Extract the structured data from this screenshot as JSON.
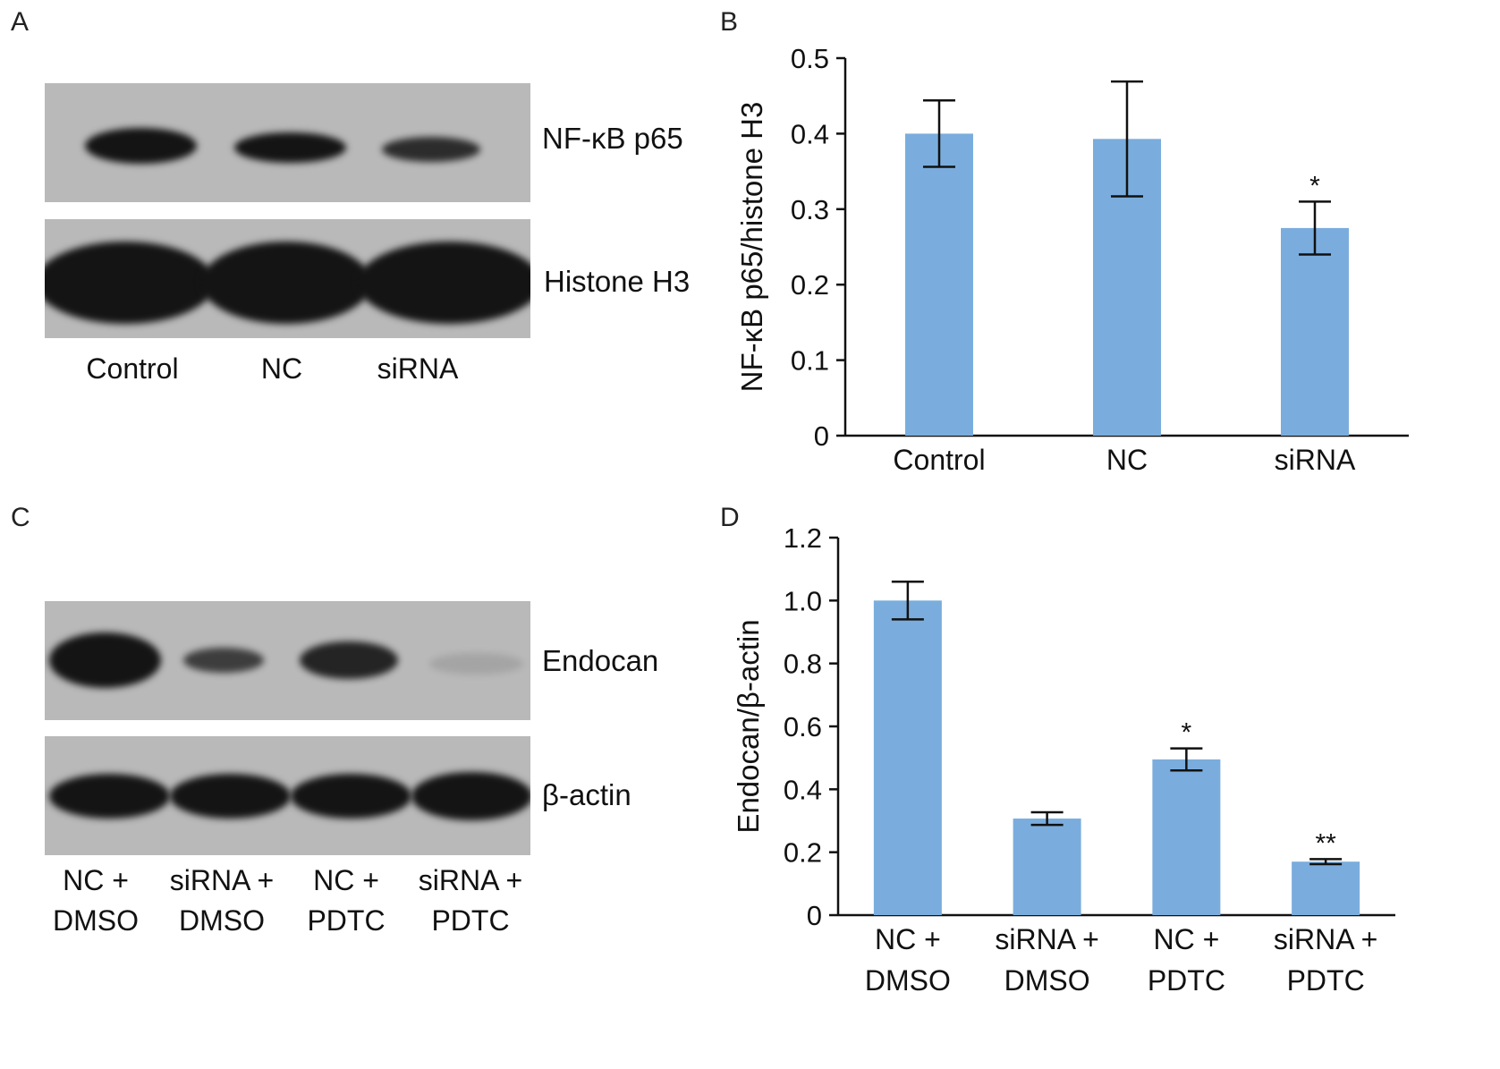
{
  "panels": {
    "A": {
      "letter": "A",
      "blots": [
        {
          "label": "NF-κB p65",
          "intensities": [
            0.85,
            0.8,
            0.6
          ]
        },
        {
          "label": "Histone H3",
          "intensities": [
            1,
            1,
            1
          ]
        }
      ],
      "lanes": [
        "Control",
        "NC",
        "siRNA"
      ]
    },
    "B": {
      "letter": "B"
    },
    "C": {
      "letter": "C",
      "blots": [
        {
          "label": "Endocan",
          "intensities": [
            1,
            0.55,
            0.75,
            0.12
          ]
        },
        {
          "label": "β-actin",
          "intensities": [
            1,
            1,
            1,
            1
          ]
        }
      ],
      "lanes": [
        {
          "line1": "NC +",
          "line2": "DMSO"
        },
        {
          "line1": "siRNA +",
          "line2": "DMSO"
        },
        {
          "line1": "NC +",
          "line2": "PDTC"
        },
        {
          "line1": "siRNA +",
          "line2": "PDTC"
        }
      ]
    },
    "D": {
      "letter": "D"
    }
  },
  "colors": {
    "bar": "#7aaddd",
    "axis": "#111111",
    "blot_bg": "#b9b9b9",
    "band": "#141414"
  },
  "chart_data": [
    {
      "panel": "B",
      "type": "bar",
      "categories": [
        "Control",
        "NC",
        "siRNA"
      ],
      "values": [
        0.4,
        0.393,
        0.275
      ],
      "errors": [
        0.044,
        0.076,
        0.035
      ],
      "annotations": [
        "",
        "",
        "*"
      ],
      "ylabel": "NF-κB p65/histone H3",
      "ylim": [
        0,
        0.5
      ],
      "yticks": [
        "0",
        "0.1",
        "0.2",
        "0.3",
        "0.4",
        "0.5"
      ],
      "grid": false,
      "legend": "none"
    },
    {
      "panel": "D",
      "type": "bar",
      "categories": [
        "NC + DMSO",
        "siRNA + DMSO",
        "NC + PDTC",
        "siRNA + PDTC"
      ],
      "category_lines": [
        [
          "NC +",
          "DMSO"
        ],
        [
          "siRNA +",
          "DMSO"
        ],
        [
          "NC +",
          "PDTC"
        ],
        [
          "siRNA +",
          "PDTC"
        ]
      ],
      "values": [
        1.0,
        0.307,
        0.495,
        0.17
      ],
      "errors": [
        0.06,
        0.02,
        0.035,
        0.008
      ],
      "annotations": [
        "",
        "",
        "*",
        "**"
      ],
      "ylabel": "Endocan/β-actin",
      "ylim": [
        0,
        1.2
      ],
      "yticks": [
        "0",
        "0.2",
        "0.4",
        "0.6",
        "0.8",
        "1.0",
        "1.2"
      ],
      "grid": false,
      "legend": "none"
    }
  ]
}
